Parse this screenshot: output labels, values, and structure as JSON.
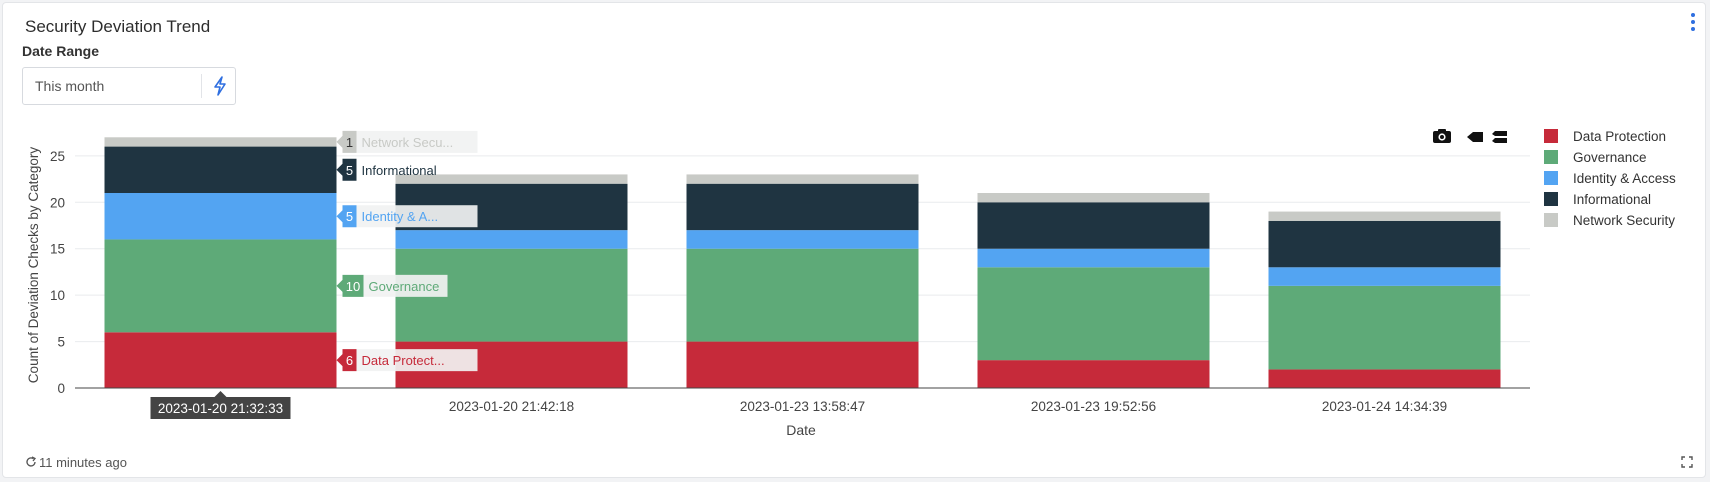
{
  "panel": {
    "title": "Security Deviation Trend",
    "menu_icon": "more-vertical-icon"
  },
  "date_range": {
    "label": "Date Range",
    "value": "This month",
    "bolt_icon": "lightning-bolt-icon"
  },
  "modebar": {
    "icons": [
      "camera-icon",
      "pan-left-icon",
      "compare-hover-icon"
    ]
  },
  "footer": {
    "refresh_icon": "refresh-icon",
    "updated_text": "11 minutes ago",
    "expand_icon": "expand-icon"
  },
  "colors": {
    "Data Protection": "#c62a3a",
    "Governance": "#5eaa78",
    "Identity & Access": "#53a4f2",
    "Informational": "#1f3441",
    "Network Security": "#c8cac6"
  },
  "chart_data": {
    "type": "bar",
    "stacked": true,
    "categories": [
      "2023-01-20 21:32:33",
      "2023-01-20 21:42:18",
      "2023-01-23 13:58:47",
      "2023-01-23 19:52:56",
      "2023-01-24 14:34:39"
    ],
    "series": [
      {
        "name": "Data Protection",
        "values": [
          6,
          5,
          5,
          3,
          2
        ]
      },
      {
        "name": "Governance",
        "values": [
          10,
          10,
          10,
          10,
          9
        ]
      },
      {
        "name": "Identity & Access",
        "values": [
          5,
          2,
          2,
          2,
          2
        ]
      },
      {
        "name": "Informational",
        "values": [
          5,
          5,
          5,
          5,
          5
        ]
      },
      {
        "name": "Network Security",
        "values": [
          1,
          1,
          1,
          1,
          1
        ]
      }
    ],
    "xlabel": "Date",
    "ylabel": "Count of Deviation Checks by Category",
    "ylim": [
      0,
      28
    ],
    "yticks": [
      0,
      5,
      10,
      15,
      20,
      25
    ],
    "grid": true,
    "legend_position": "right",
    "hover": {
      "category": "2023-01-20 21:32:33",
      "labels": [
        {
          "series": "Network Security",
          "value": "1",
          "text": "Network Secu..."
        },
        {
          "series": "Informational",
          "value": "5",
          "text": "Informational"
        },
        {
          "series": "Identity & Access",
          "value": "5",
          "text": "Identity & A..."
        },
        {
          "series": "Governance",
          "value": "10",
          "text": "Governance"
        },
        {
          "series": "Data Protection",
          "value": "6",
          "text": "Data Protect..."
        }
      ]
    }
  }
}
